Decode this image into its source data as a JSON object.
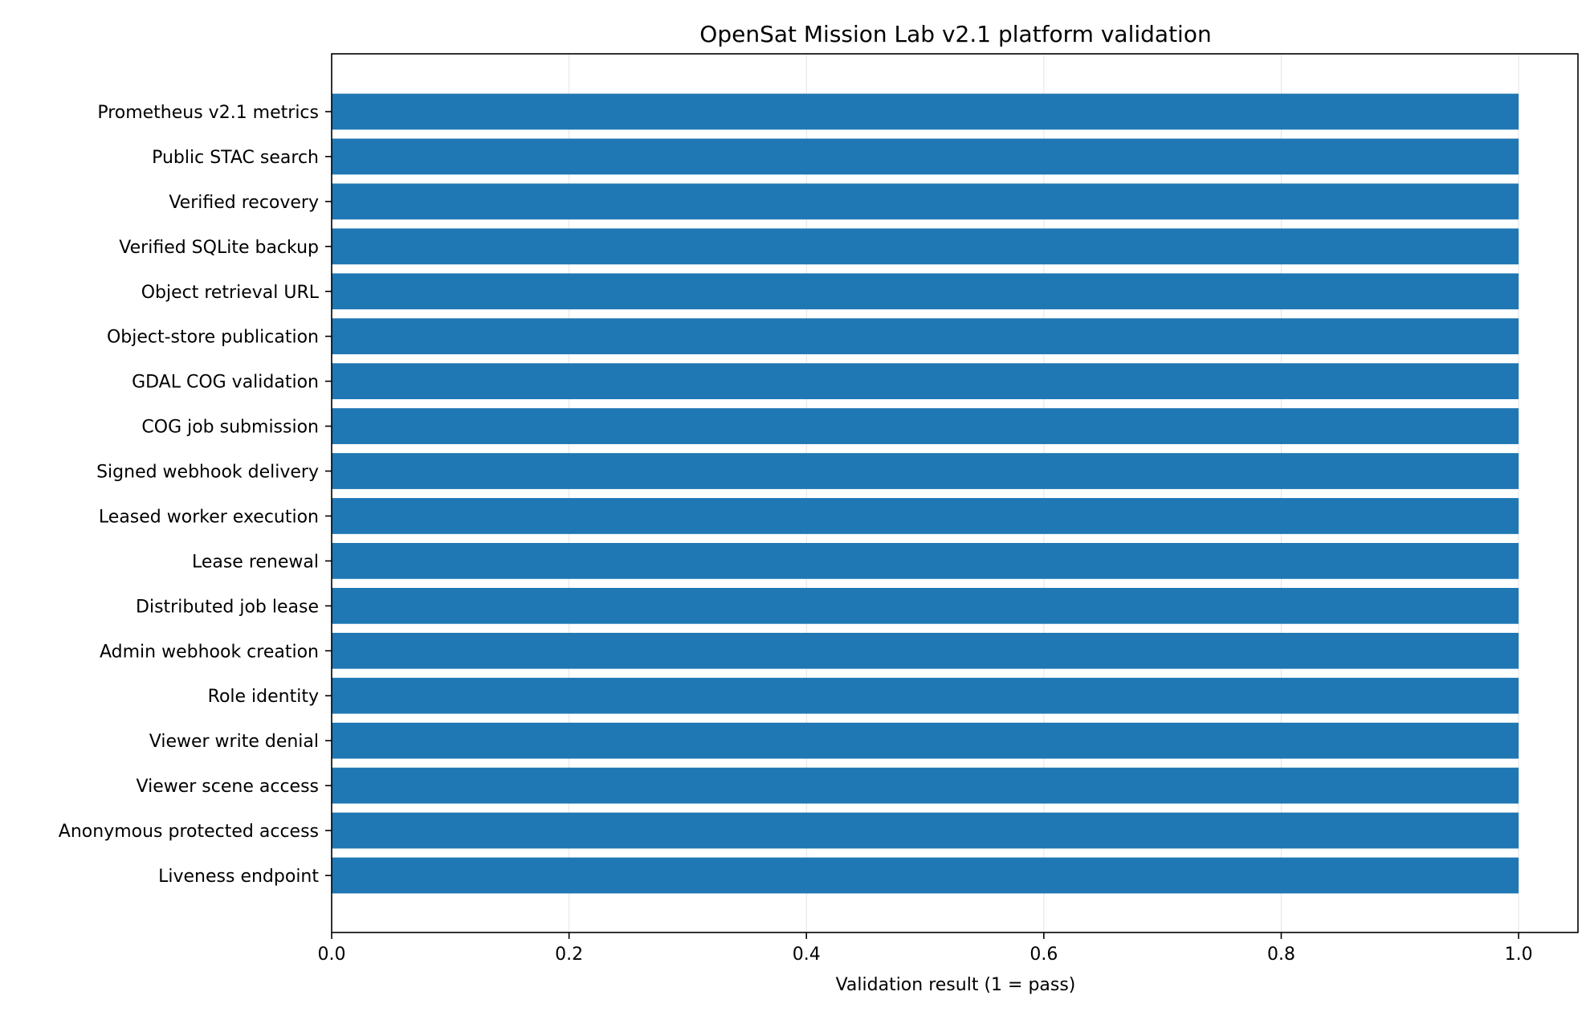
{
  "chart_data": {
    "type": "bar",
    "orientation": "horizontal",
    "title": "OpenSat Mission Lab v2.1 platform validation",
    "xlabel": "Validation result (1 = pass)",
    "ylabel": "",
    "xlim": [
      0,
      1.05
    ],
    "xticks": [
      "0.0",
      "0.2",
      "0.4",
      "0.6",
      "0.8",
      "1.0"
    ],
    "grid": "vertical",
    "bar_color": "#1f77b4",
    "categories": [
      "Prometheus v2.1 metrics",
      "Public STAC search",
      "Verified recovery",
      "Verified SQLite backup",
      "Object retrieval URL",
      "Object-store publication",
      "GDAL COG validation",
      "COG job submission",
      "Signed webhook delivery",
      "Leased worker execution",
      "Lease renewal",
      "Distributed job lease",
      "Admin webhook creation",
      "Role identity",
      "Viewer write denial",
      "Viewer scene access",
      "Anonymous protected access",
      "Liveness endpoint"
    ],
    "values": [
      1,
      1,
      1,
      1,
      1,
      1,
      1,
      1,
      1,
      1,
      1,
      1,
      1,
      1,
      1,
      1,
      1,
      1
    ]
  }
}
